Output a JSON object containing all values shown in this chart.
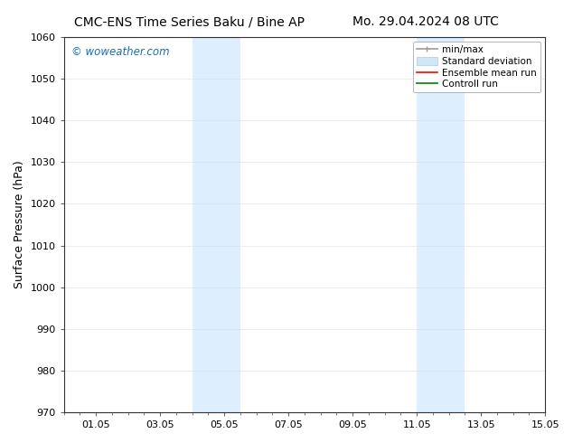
{
  "title_left": "CMC-ENS Time Series Baku / Bine AP",
  "title_right": "Mo. 29.04.2024 08 UTC",
  "ylabel": "Surface Pressure (hPa)",
  "watermark": "© woweather.com",
  "watermark_color": "#1a6faf",
  "ylim": [
    970,
    1060
  ],
  "yticks": [
    970,
    980,
    990,
    1000,
    1010,
    1020,
    1030,
    1040,
    1050,
    1060
  ],
  "xlim_start": 0,
  "xlim_end": 15,
  "xtick_labels": [
    "01.05",
    "03.05",
    "05.05",
    "07.05",
    "09.05",
    "11.05",
    "13.05",
    "15.05"
  ],
  "xtick_positions": [
    1,
    3,
    5,
    7,
    9,
    11,
    13,
    15
  ],
  "xtick_minor_positions": [
    0,
    0.5,
    1,
    1.5,
    2,
    2.5,
    3,
    3.5,
    4,
    4.5,
    5,
    5.5,
    6,
    6.5,
    7,
    7.5,
    8,
    8.5,
    9,
    9.5,
    10,
    10.5,
    11,
    11.5,
    12,
    12.5,
    13,
    13.5,
    14,
    14.5,
    15
  ],
  "shaded_regions": [
    {
      "xmin": 4.0,
      "xmax": 5.5,
      "color": "#ddeeff"
    },
    {
      "xmin": 11.0,
      "xmax": 12.5,
      "color": "#ddeeff"
    }
  ],
  "bg_color": "#ffffff",
  "plot_bg_color": "#ffffff",
  "title_fontsize": 10,
  "axis_label_fontsize": 9,
  "tick_fontsize": 8,
  "legend_fontsize": 7.5
}
